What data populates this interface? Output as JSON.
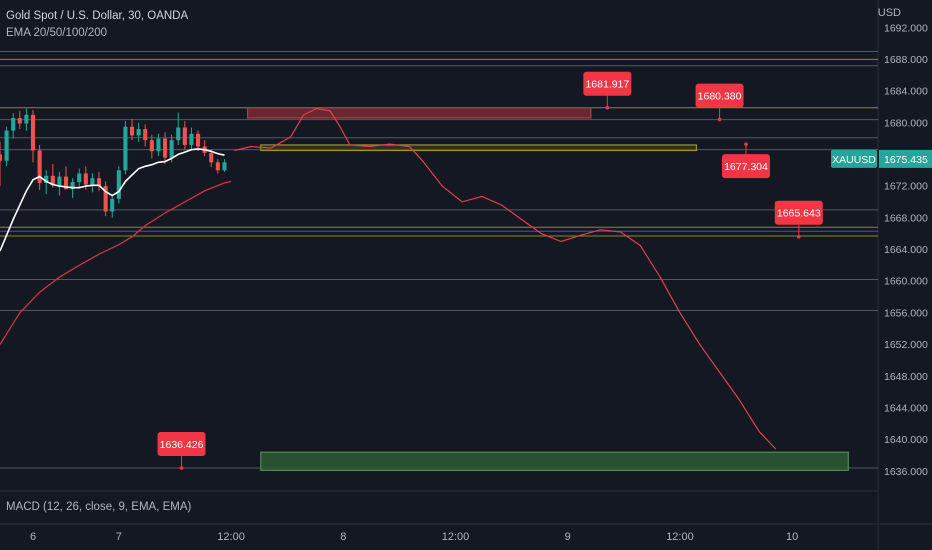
{
  "header": {
    "title": "Gold Spot / U.S. Dollar, 30, OANDA",
    "indicator": "EMA 20/50/100/200"
  },
  "macd_label": "MACD (12, 26, close, 9, EMA, EMA)",
  "colors": {
    "background": "#141823",
    "up": "#26a69a",
    "down": "#ef5350",
    "ema_fast": "#ffffff",
    "ema_slow": "#d1333f",
    "projection": "#e04050",
    "callout": "#f23645",
    "zone_red": "#7a2a33",
    "zone_yellow": "#a09028",
    "zone_green": "#2f5a34",
    "hline": "#6b6f7a",
    "hline_yellow": "#9a9430"
  },
  "chart_data": {
    "type": "candlestick",
    "symbol": "XAUUSD",
    "last_price": "1675.435",
    "y_unit": "USD",
    "ylim": [
      1633.5,
      1695.5
    ],
    "xlim": [
      0,
      133
    ],
    "y_ticks": [
      "1692.000",
      "1688.000",
      "1684.000",
      "1680.000",
      "1676.000",
      "1672.000",
      "1668.000",
      "1664.000",
      "1660.000",
      "1656.000",
      "1652.000",
      "1648.000",
      "1644.000",
      "1640.000",
      "1636.000"
    ],
    "x_ticks": [
      {
        "label": "6",
        "x": 5
      },
      {
        "label": "7",
        "x": 18
      },
      {
        "label": "12:00",
        "x": 35
      },
      {
        "label": "8",
        "x": 52
      },
      {
        "label": "12:00",
        "x": 69
      },
      {
        "label": "9",
        "x": 86
      },
      {
        "label": "12:00",
        "x": 103
      },
      {
        "label": "10",
        "x": 120
      }
    ],
    "candles": [
      {
        "x": 0,
        "o": 1676.0,
        "h": 1677.6,
        "l": 1672.0,
        "c": 1675.2
      },
      {
        "x": 1,
        "o": 1675.2,
        "h": 1679.5,
        "l": 1674.5,
        "c": 1679.0
      },
      {
        "x": 2,
        "o": 1679.0,
        "h": 1681.2,
        "l": 1678.0,
        "c": 1680.6
      },
      {
        "x": 3,
        "o": 1680.6,
        "h": 1681.5,
        "l": 1679.2,
        "c": 1679.9
      },
      {
        "x": 4,
        "o": 1679.9,
        "h": 1681.8,
        "l": 1679.0,
        "c": 1681.0
      },
      {
        "x": 5,
        "o": 1681.0,
        "h": 1681.6,
        "l": 1675.0,
        "c": 1676.5
      },
      {
        "x": 6,
        "o": 1676.5,
        "h": 1677.2,
        "l": 1671.5,
        "c": 1672.4
      },
      {
        "x": 7,
        "o": 1672.4,
        "h": 1674.0,
        "l": 1671.0,
        "c": 1673.3
      },
      {
        "x": 8,
        "o": 1673.3,
        "h": 1674.8,
        "l": 1671.8,
        "c": 1672.1
      },
      {
        "x": 9,
        "o": 1672.1,
        "h": 1673.8,
        "l": 1670.8,
        "c": 1673.2
      },
      {
        "x": 10,
        "o": 1673.2,
        "h": 1674.5,
        "l": 1672.0,
        "c": 1671.6
      },
      {
        "x": 11,
        "o": 1671.6,
        "h": 1673.0,
        "l": 1670.5,
        "c": 1672.5
      },
      {
        "x": 12,
        "o": 1672.5,
        "h": 1674.2,
        "l": 1671.8,
        "c": 1673.6
      },
      {
        "x": 13,
        "o": 1673.6,
        "h": 1674.5,
        "l": 1671.5,
        "c": 1672.2
      },
      {
        "x": 14,
        "o": 1672.2,
        "h": 1673.6,
        "l": 1671.2,
        "c": 1673.0
      },
      {
        "x": 15,
        "o": 1673.0,
        "h": 1673.8,
        "l": 1671.4,
        "c": 1672.0
      },
      {
        "x": 16,
        "o": 1672.0,
        "h": 1672.6,
        "l": 1668.2,
        "c": 1668.8
      },
      {
        "x": 17,
        "o": 1668.8,
        "h": 1671.0,
        "l": 1668.0,
        "c": 1670.4
      },
      {
        "x": 18,
        "o": 1670.4,
        "h": 1674.5,
        "l": 1669.8,
        "c": 1674.0
      },
      {
        "x": 19,
        "o": 1674.0,
        "h": 1680.2,
        "l": 1673.5,
        "c": 1679.5
      },
      {
        "x": 20,
        "o": 1679.5,
        "h": 1680.5,
        "l": 1677.8,
        "c": 1678.4
      },
      {
        "x": 21,
        "o": 1678.4,
        "h": 1680.0,
        "l": 1677.6,
        "c": 1679.2
      },
      {
        "x": 22,
        "o": 1679.2,
        "h": 1679.8,
        "l": 1677.0,
        "c": 1677.8
      },
      {
        "x": 23,
        "o": 1677.8,
        "h": 1678.5,
        "l": 1675.5,
        "c": 1676.4
      },
      {
        "x": 24,
        "o": 1676.4,
        "h": 1678.6,
        "l": 1675.8,
        "c": 1678.0
      },
      {
        "x": 25,
        "o": 1678.0,
        "h": 1678.8,
        "l": 1674.8,
        "c": 1675.6
      },
      {
        "x": 26,
        "o": 1675.6,
        "h": 1678.5,
        "l": 1675.0,
        "c": 1677.8
      },
      {
        "x": 27,
        "o": 1677.8,
        "h": 1681.3,
        "l": 1677.2,
        "c": 1679.4
      },
      {
        "x": 28,
        "o": 1679.4,
        "h": 1680.2,
        "l": 1676.6,
        "c": 1677.2
      },
      {
        "x": 29,
        "o": 1677.2,
        "h": 1679.4,
        "l": 1676.5,
        "c": 1678.6
      },
      {
        "x": 30,
        "o": 1678.6,
        "h": 1679.0,
        "l": 1676.4,
        "c": 1677.0
      },
      {
        "x": 31,
        "o": 1677.0,
        "h": 1677.8,
        "l": 1675.8,
        "c": 1676.2
      },
      {
        "x": 32,
        "o": 1676.2,
        "h": 1676.6,
        "l": 1674.4,
        "c": 1675.0
      },
      {
        "x": 33,
        "o": 1675.0,
        "h": 1675.4,
        "l": 1673.6,
        "c": 1674.0
      },
      {
        "x": 34,
        "o": 1674.0,
        "h": 1675.4,
        "l": 1673.8,
        "c": 1675.0
      }
    ],
    "ema_fast": [
      {
        "x": 0,
        "y": 1663.8
      },
      {
        "x": 1,
        "y": 1665.8
      },
      {
        "x": 2,
        "y": 1667.8
      },
      {
        "x": 3,
        "y": 1669.6
      },
      {
        "x": 4,
        "y": 1671.4
      },
      {
        "x": 5,
        "y": 1672.8
      },
      {
        "x": 6,
        "y": 1673.2
      },
      {
        "x": 7,
        "y": 1672.6
      },
      {
        "x": 8,
        "y": 1672.2
      },
      {
        "x": 9,
        "y": 1672.0
      },
      {
        "x": 10,
        "y": 1671.9
      },
      {
        "x": 11,
        "y": 1671.8
      },
      {
        "x": 12,
        "y": 1671.8
      },
      {
        "x": 13,
        "y": 1672.0
      },
      {
        "x": 14,
        "y": 1672.1
      },
      {
        "x": 15,
        "y": 1672.1
      },
      {
        "x": 16,
        "y": 1671.3
      },
      {
        "x": 17,
        "y": 1670.8
      },
      {
        "x": 18,
        "y": 1671.3
      },
      {
        "x": 19,
        "y": 1672.6
      },
      {
        "x": 20,
        "y": 1673.4
      },
      {
        "x": 21,
        "y": 1674.2
      },
      {
        "x": 22,
        "y": 1674.5
      },
      {
        "x": 23,
        "y": 1674.7
      },
      {
        "x": 24,
        "y": 1675.0
      },
      {
        "x": 25,
        "y": 1675.1
      },
      {
        "x": 26,
        "y": 1675.5
      },
      {
        "x": 27,
        "y": 1676.0
      },
      {
        "x": 28,
        "y": 1676.3
      },
      {
        "x": 29,
        "y": 1676.6
      },
      {
        "x": 30,
        "y": 1676.7
      },
      {
        "x": 31,
        "y": 1676.6
      },
      {
        "x": 32,
        "y": 1676.4
      },
      {
        "x": 33,
        "y": 1676.1
      },
      {
        "x": 34,
        "y": 1675.9
      }
    ],
    "ema_slow": [
      {
        "x": 0,
        "y": 1652.0
      },
      {
        "x": 3,
        "y": 1656.0
      },
      {
        "x": 6,
        "y": 1658.6
      },
      {
        "x": 9,
        "y": 1660.5
      },
      {
        "x": 12,
        "y": 1662.0
      },
      {
        "x": 15,
        "y": 1663.4
      },
      {
        "x": 18,
        "y": 1664.6
      },
      {
        "x": 20,
        "y": 1665.6
      },
      {
        "x": 22,
        "y": 1667.0
      },
      {
        "x": 25,
        "y": 1668.6
      },
      {
        "x": 28,
        "y": 1670.0
      },
      {
        "x": 31,
        "y": 1671.4
      },
      {
        "x": 34,
        "y": 1672.4
      },
      {
        "x": 35,
        "y": 1672.6
      }
    ],
    "projection": [
      {
        "x": 35.5,
        "y": 1676.5
      },
      {
        "x": 38,
        "y": 1677.0
      },
      {
        "x": 41,
        "y": 1676.8
      },
      {
        "x": 44,
        "y": 1678.2
      },
      {
        "x": 46,
        "y": 1681.0
      },
      {
        "x": 48,
        "y": 1681.8
      },
      {
        "x": 50,
        "y": 1681.5
      },
      {
        "x": 51.5,
        "y": 1679.5
      },
      {
        "x": 53,
        "y": 1677.2
      },
      {
        "x": 56,
        "y": 1677.0
      },
      {
        "x": 59,
        "y": 1677.3
      },
      {
        "x": 62,
        "y": 1677.0
      },
      {
        "x": 64,
        "y": 1675.2
      },
      {
        "x": 67,
        "y": 1672.0
      },
      {
        "x": 70,
        "y": 1670.0
      },
      {
        "x": 73,
        "y": 1670.7
      },
      {
        "x": 76,
        "y": 1669.6
      },
      {
        "x": 79,
        "y": 1667.8
      },
      {
        "x": 82,
        "y": 1666.0
      },
      {
        "x": 85,
        "y": 1665.0
      },
      {
        "x": 88,
        "y": 1665.8
      },
      {
        "x": 91,
        "y": 1666.5
      },
      {
        "x": 94,
        "y": 1666.2
      },
      {
        "x": 97,
        "y": 1664.5
      },
      {
        "x": 100,
        "y": 1660.5
      },
      {
        "x": 103,
        "y": 1656.0
      },
      {
        "x": 106,
        "y": 1652.0
      },
      {
        "x": 109,
        "y": 1648.5
      },
      {
        "x": 112,
        "y": 1645.0
      },
      {
        "x": 115,
        "y": 1641.0
      },
      {
        "x": 117.5,
        "y": 1638.8
      }
    ],
    "horizontal_lines": [
      {
        "y": 1689.0,
        "style": "gray"
      },
      {
        "y": 1688.0,
        "style": "yellow"
      },
      {
        "y": 1687.2,
        "style": "gray"
      },
      {
        "y": 1681.9,
        "style": "yellow"
      },
      {
        "y": 1680.4,
        "style": "gray"
      },
      {
        "y": 1678.1,
        "style": "gray"
      },
      {
        "y": 1676.6,
        "style": "gray"
      },
      {
        "y": 1669.0,
        "style": "gray"
      },
      {
        "y": 1666.8,
        "style": "yellow"
      },
      {
        "y": 1666.3,
        "style": "gray"
      },
      {
        "y": 1665.7,
        "style": "yellow"
      },
      {
        "y": 1660.2,
        "style": "gray"
      },
      {
        "y": 1656.3,
        "style": "gray"
      },
      {
        "y": 1636.4,
        "style": "gray"
      }
    ],
    "zones": [
      {
        "x1": 37.5,
        "x2": 89.5,
        "y1": 1680.6,
        "y2": 1681.9,
        "color": "red"
      },
      {
        "x1": 39.5,
        "x2": 105.5,
        "y1": 1677.2,
        "y2": 1676.5,
        "color": "yellow"
      },
      {
        "x1": 39.5,
        "x2": 128.5,
        "y1": 1638.4,
        "y2": 1636.1,
        "color": "green"
      }
    ],
    "callouts": [
      {
        "label": "1681.917",
        "x": 92,
        "y": 1681.9,
        "pos": "above"
      },
      {
        "label": "1680.380",
        "x": 109,
        "y": 1680.4,
        "pos": "above"
      },
      {
        "label": "1677.304",
        "x": 113,
        "y": 1677.3,
        "pos": "below"
      },
      {
        "label": "1665.643",
        "x": 121,
        "y": 1665.6,
        "pos": "above"
      },
      {
        "label": "1636.426",
        "x": 27.5,
        "y": 1636.4,
        "pos": "above"
      }
    ]
  }
}
